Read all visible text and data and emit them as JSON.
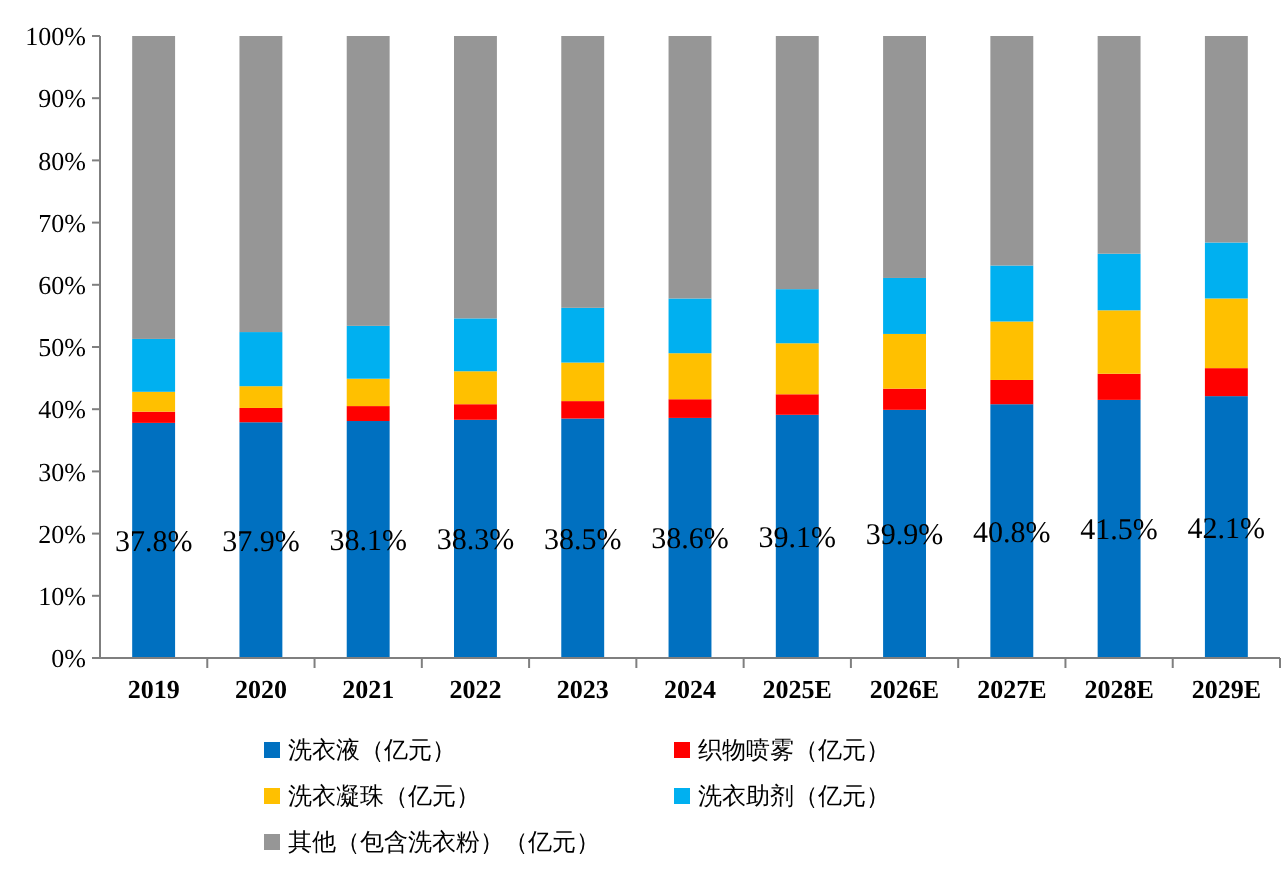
{
  "chart_data": {
    "type": "bar",
    "stacked": true,
    "categories": [
      "2019",
      "2020",
      "2021",
      "2022",
      "2023",
      "2024",
      "2025E",
      "2026E",
      "2027E",
      "2028E",
      "2029E"
    ],
    "ylim": [
      0,
      100
    ],
    "yticks": [
      {
        "value": 0,
        "label": "0%"
      },
      {
        "value": 10,
        "label": "10%"
      },
      {
        "value": 20,
        "label": "20%"
      },
      {
        "value": 30,
        "label": "30%"
      },
      {
        "value": 40,
        "label": "40%"
      },
      {
        "value": 50,
        "label": "50%"
      },
      {
        "value": 60,
        "label": "60%"
      },
      {
        "value": 70,
        "label": "70%"
      },
      {
        "value": 80,
        "label": "80%"
      },
      {
        "value": 90,
        "label": "90%"
      },
      {
        "value": 100,
        "label": "100%"
      }
    ],
    "legend": "bottom",
    "series": [
      {
        "name": "洗衣液（亿元）",
        "color": "#0070c0",
        "values": [
          37.8,
          37.9,
          38.1,
          38.3,
          38.5,
          38.6,
          39.1,
          39.9,
          40.8,
          41.5,
          42.1
        ],
        "value_labels": [
          "37.8%",
          "37.9%",
          "38.1%",
          "38.3%",
          "38.5%",
          "38.6%",
          "39.1%",
          "39.9%",
          "40.8%",
          "41.5%",
          "42.1%"
        ]
      },
      {
        "name": "织物喷雾（亿元）",
        "color": "#ff0000",
        "values": [
          1.8,
          2.3,
          2.4,
          2.5,
          2.8,
          3.0,
          3.3,
          3.4,
          3.9,
          4.2,
          4.5
        ]
      },
      {
        "name": "洗衣凝珠（亿元）",
        "color": "#ffc000",
        "values": [
          3.2,
          3.5,
          4.4,
          5.3,
          6.2,
          7.4,
          8.2,
          8.8,
          9.4,
          10.2,
          11.2
        ]
      },
      {
        "name": "洗衣助剂（亿元）",
        "color": "#00b0f0",
        "values": [
          8.5,
          8.7,
          8.5,
          8.5,
          8.8,
          8.8,
          8.7,
          9.0,
          9.0,
          9.1,
          9.0
        ]
      },
      {
        "name": "其他（包含洗衣粉）（亿元）",
        "color": "#969696",
        "values": [
          48.7,
          47.6,
          46.6,
          45.4,
          43.7,
          42.2,
          40.7,
          38.9,
          36.9,
          35.0,
          33.2
        ]
      }
    ]
  }
}
